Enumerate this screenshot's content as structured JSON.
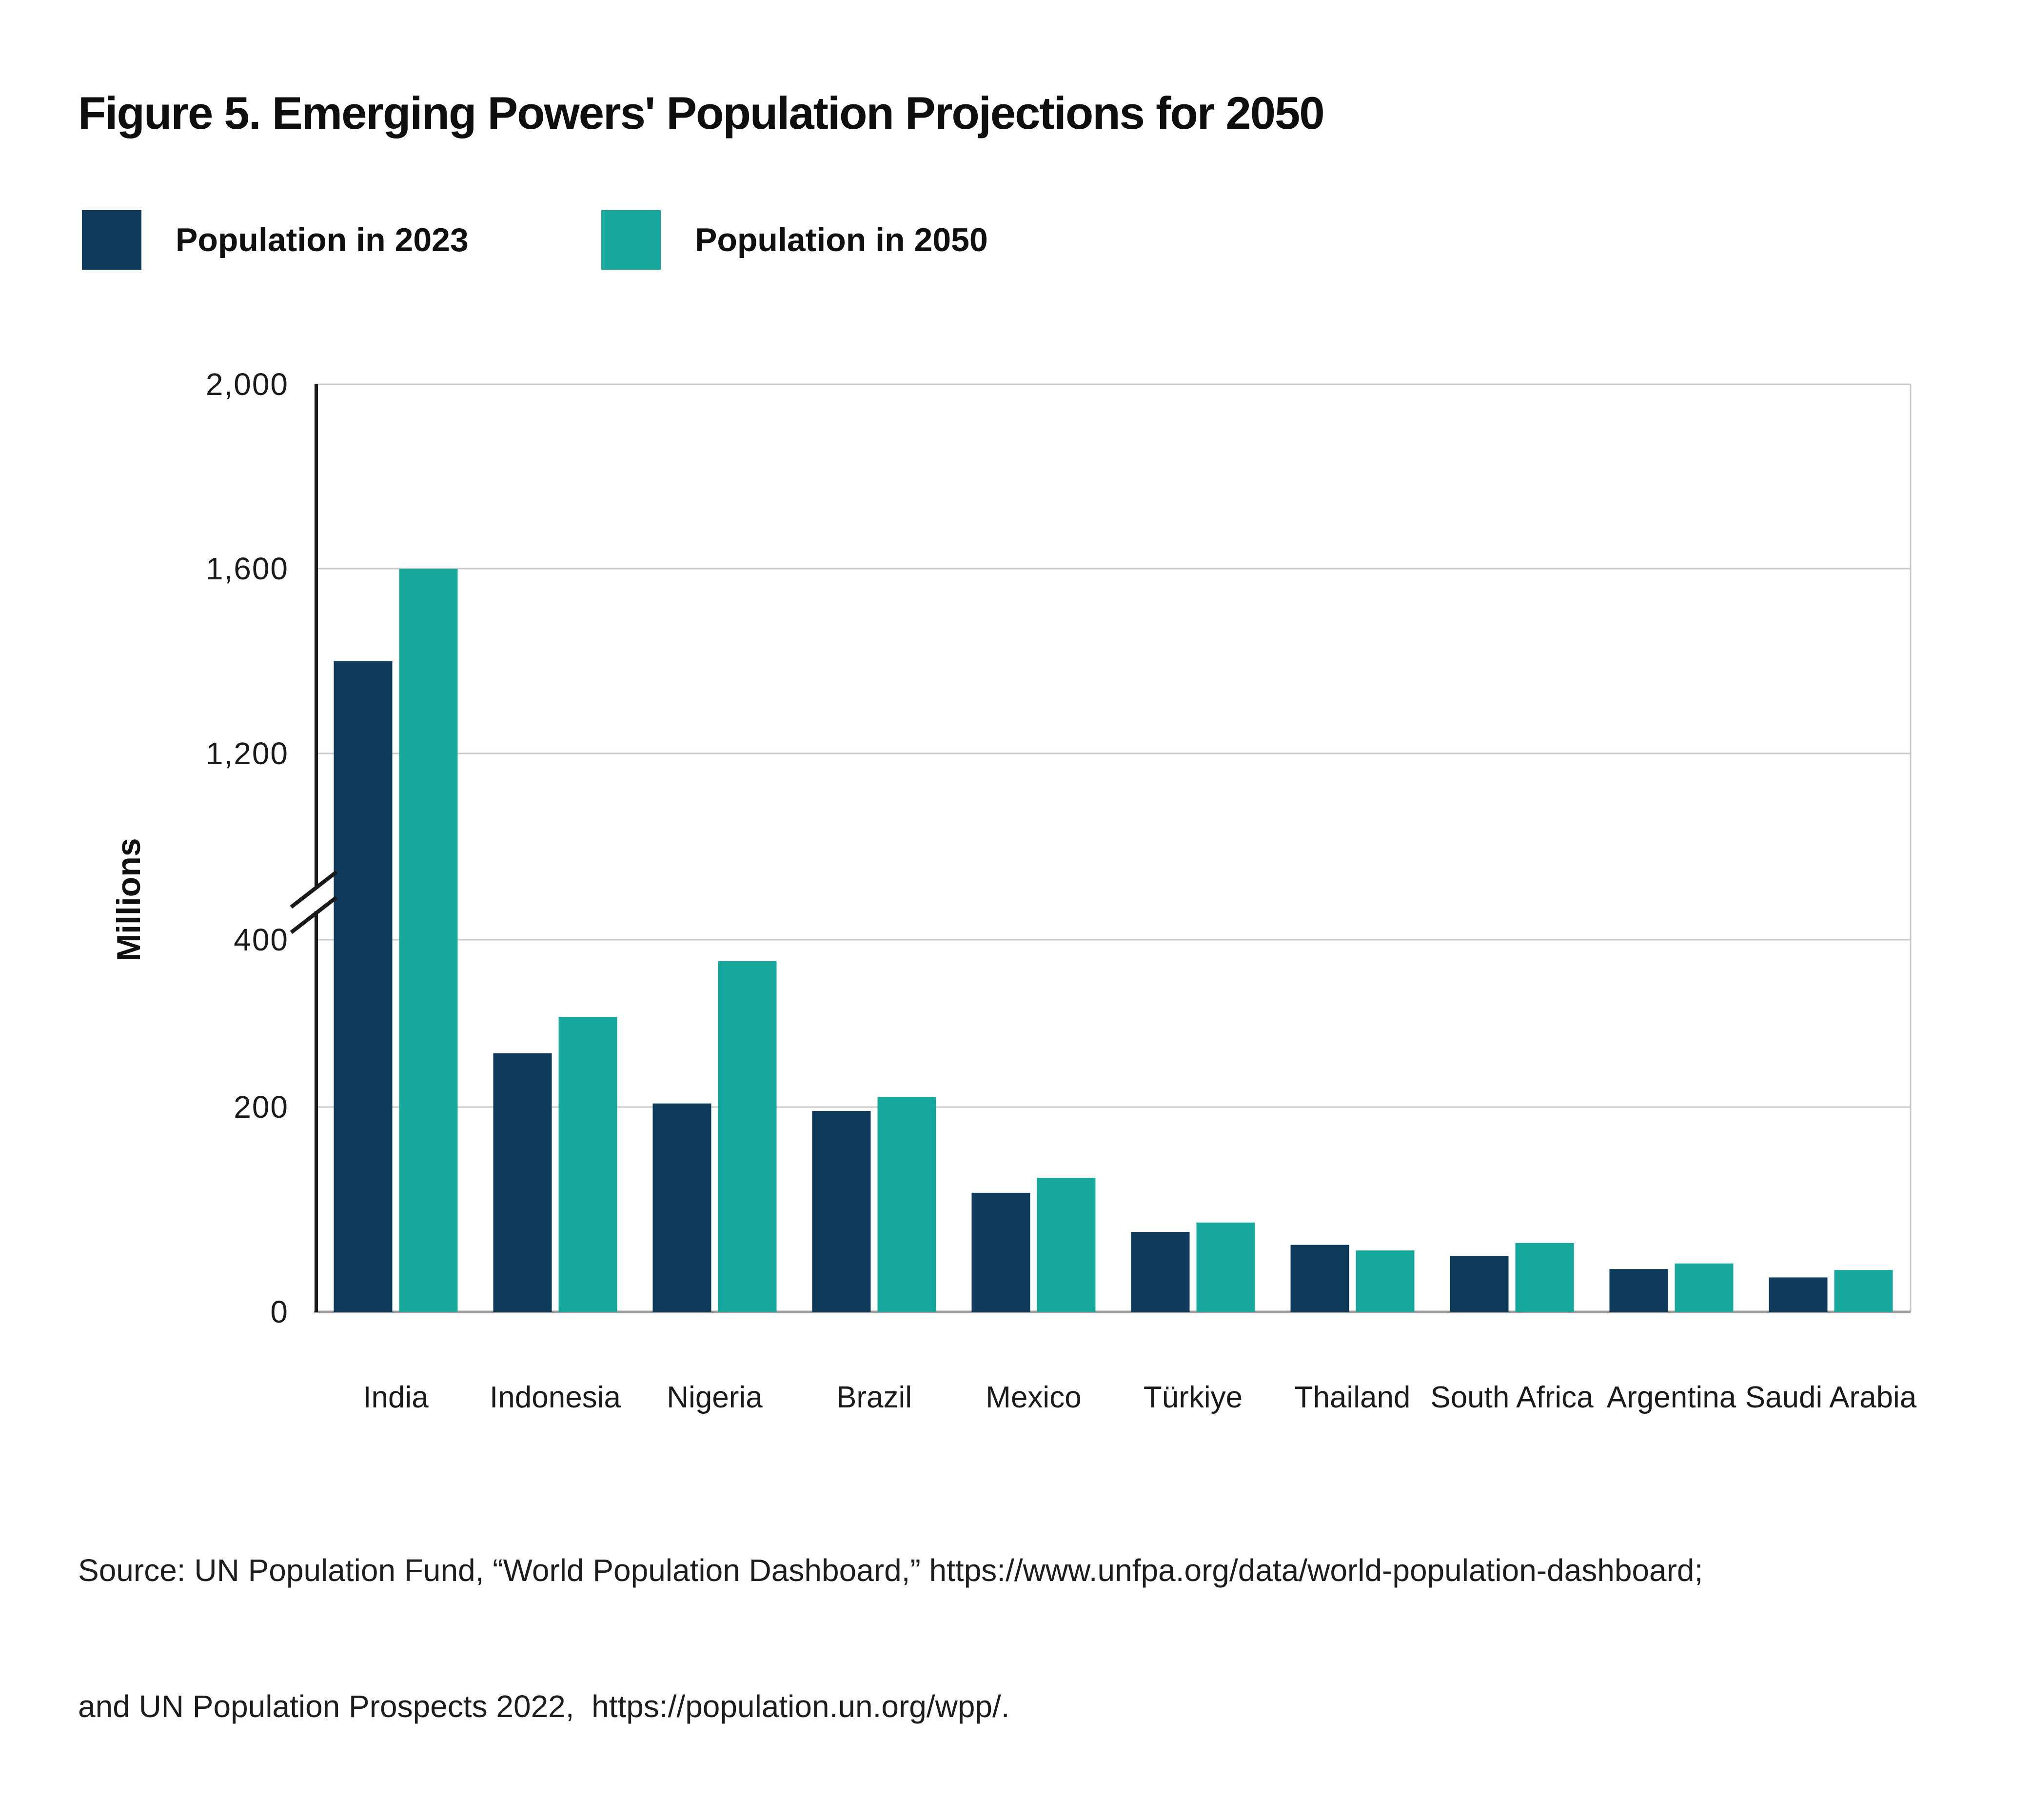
{
  "title": "Figure 5. Emerging Powers' Population Projections for 2050",
  "legend": [
    {
      "label": "Population in 2023",
      "color": "#0e3a5c"
    },
    {
      "label": "Population in 2050",
      "color": "#17a89d"
    }
  ],
  "source": {
    "line1": "Source: UN Population Fund, “World Population Dashboard,” https://www.unfpa.org/data/world-population-dashboard;",
    "line2": "and UN Population Prospects 2022,  https://population.un.org/wpp/."
  },
  "chart_data": {
    "type": "bar",
    "title": "Figure 5. Emerging Powers' Population Projections for 2050",
    "xlabel": "",
    "ylabel": "Millions",
    "grid": true,
    "legend_position": "top-left",
    "axis_break": true,
    "y_axis_sections": [
      [
        0,
        400
      ],
      [
        1200,
        2000
      ]
    ],
    "yticks": [
      {
        "label": "0",
        "value": 0
      },
      {
        "label": "200",
        "value": 200
      },
      {
        "label": "400",
        "value": 400
      },
      {
        "label": "1,200",
        "value": 1200
      },
      {
        "label": "1,600",
        "value": 1600
      },
      {
        "label": "2,000",
        "value": 2000
      }
    ],
    "categories": [
      "India",
      "Indonesia",
      "Nigeria",
      "Brazil",
      "Mexico",
      "Türkiye",
      "Thailand",
      "South Africa",
      "Argentina",
      "Saudi Arabia"
    ],
    "series": [
      {
        "name": "Population in 2023",
        "color": "#0e3a5c",
        "values": [
          1400,
          278,
          224,
          216,
          128,
          86,
          72,
          60,
          46,
          37
        ]
      },
      {
        "name": "Population in 2050",
        "color": "#17a89d",
        "values": [
          1600,
          317,
          377,
          231,
          144,
          96,
          66,
          74,
          52,
          45
        ]
      }
    ],
    "colors": {
      "grid": "#c9c9c9",
      "axis": "#1a1a1a",
      "baseline": "#9b9b9b",
      "text": "#1a1a1a"
    }
  }
}
